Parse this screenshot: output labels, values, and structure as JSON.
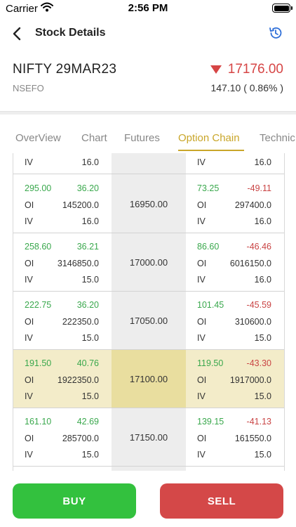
{
  "status": {
    "carrier": "Carrier",
    "time": "2:56 PM"
  },
  "header": {
    "title": "Stock Details"
  },
  "stock": {
    "symbol": "NIFTY 29MAR23",
    "exchange": "NSEFO",
    "price": "17176.00",
    "change": "147.10 ( 0.86% )"
  },
  "tabs": [
    {
      "label": "OverView",
      "active": false
    },
    {
      "label": "Chart",
      "active": false
    },
    {
      "label": "Futures",
      "active": false
    },
    {
      "label": "Option Chain",
      "active": true
    },
    {
      "label": "Technic",
      "active": false
    }
  ],
  "chain": {
    "partial_top": {
      "call_iv": "16.0",
      "put_iv": "16.0",
      "iv_label": "IV"
    },
    "labels": {
      "oi": "OI",
      "iv": "IV"
    },
    "rows": [
      {
        "call_ltp": "295.00",
        "call_chg": "36.20",
        "call_oi": "145200.0",
        "call_iv": "16.0",
        "strike": "16950.00",
        "put_ltp": "73.25",
        "put_chg": "-49.11",
        "put_oi": "297400.0",
        "put_iv": "16.0",
        "highlight": false
      },
      {
        "call_ltp": "258.60",
        "call_chg": "36.21",
        "call_oi": "3146850.0",
        "call_iv": "15.0",
        "strike": "17000.00",
        "put_ltp": "86.60",
        "put_chg": "-46.46",
        "put_oi": "6016150.0",
        "put_iv": "16.0",
        "highlight": false
      },
      {
        "call_ltp": "222.75",
        "call_chg": "36.20",
        "call_oi": "222350.0",
        "call_iv": "15.0",
        "strike": "17050.00",
        "put_ltp": "101.45",
        "put_chg": "-45.59",
        "put_oi": "310600.0",
        "put_iv": "15.0",
        "highlight": false
      },
      {
        "call_ltp": "191.50",
        "call_chg": "40.76",
        "call_oi": "1922350.0",
        "call_iv": "15.0",
        "strike": "17100.00",
        "put_ltp": "119.50",
        "put_chg": "-43.30",
        "put_oi": "1917000.0",
        "put_iv": "15.0",
        "highlight": true
      },
      {
        "call_ltp": "161.10",
        "call_chg": "42.69",
        "call_oi": "285700.0",
        "call_iv": "15.0",
        "strike": "17150.00",
        "put_ltp": "139.15",
        "put_chg": "-41.13",
        "put_oi": "161550.0",
        "put_iv": "15.0",
        "highlight": false
      }
    ]
  },
  "actions": {
    "buy": "BUY",
    "sell": "SELL"
  },
  "colors": {
    "accent": "#c9a629",
    "positive": "#3aa84d",
    "negative": "#c94444",
    "buy": "#33c13e",
    "sell": "#d44848",
    "highlight": "#f3ecc9"
  },
  "icons": {
    "back": "chevron-left-icon",
    "history": "history-icon",
    "wifi": "wifi-icon",
    "battery": "battery-icon",
    "price_direction": "triangle-down-icon"
  }
}
